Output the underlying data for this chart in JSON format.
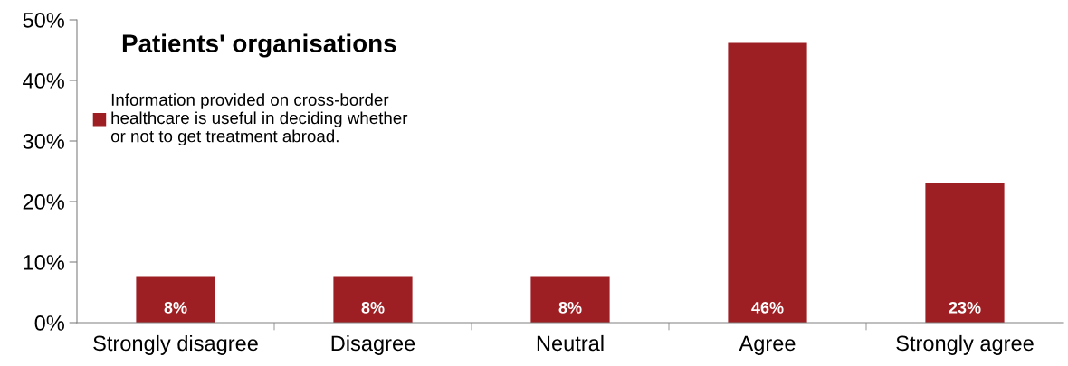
{
  "chart_data": {
    "type": "bar",
    "title": "Patients' organisations",
    "categories": [
      "Strongly disagree",
      "Disagree",
      "Neutral",
      "Agree",
      "Strongly agree"
    ],
    "series": [
      {
        "name": "Information provided on cross-border\nhealthcare is useful in deciding whether\nor not to get treatment abroad.",
        "color": "#9e1f23",
        "values": [
          7.7,
          7.7,
          7.7,
          46.2,
          23.1
        ],
        "value_labels": [
          "8%",
          "8%",
          "8%",
          "46%",
          "23%"
        ]
      }
    ],
    "ylim": [
      0,
      50
    ],
    "yticks": [
      {
        "value": 0,
        "label": "0%"
      },
      {
        "value": 10,
        "label": "10%"
      },
      {
        "value": 20,
        "label": "20%"
      },
      {
        "value": 30,
        "label": "30%"
      },
      {
        "value": 40,
        "label": "40%"
      },
      {
        "value": 50,
        "label": "50%"
      }
    ],
    "grid": false,
    "legend": "top left"
  }
}
